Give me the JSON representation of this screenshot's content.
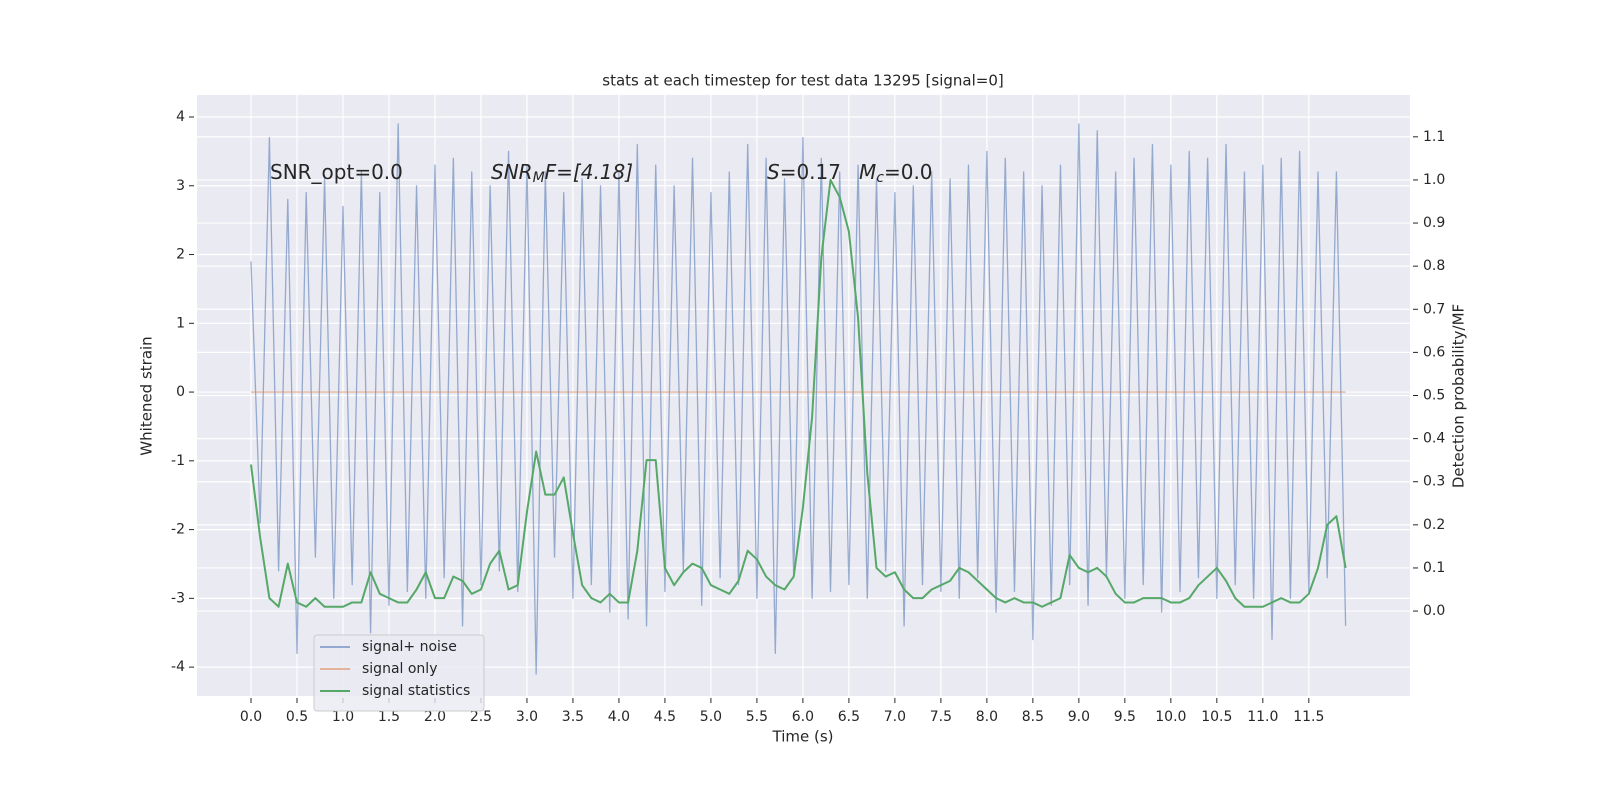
{
  "chart_data": {
    "type": "line",
    "title": "stats at each timestep for test data 13295 [signal=0]",
    "xlabel": "Time (s)",
    "ylabel": "Whitened strain",
    "y2label": "Detection probability/MF",
    "annotations": [
      [
        "SNR_opt=0.0"
      ],
      [
        "SNR",
        "M",
        "F=[4.18]"
      ],
      [
        "S",
        "=0.17"
      ],
      [
        "M",
        "c",
        "=0.0"
      ]
    ],
    "x": [
      0,
      0.1,
      0.2,
      0.3,
      0.4,
      0.5,
      0.6,
      0.7,
      0.8,
      0.9,
      1,
      1.1,
      1.2,
      1.3,
      1.4,
      1.5,
      1.6,
      1.7,
      1.8,
      1.9,
      2,
      2.1,
      2.2,
      2.3,
      2.4,
      2.5,
      2.6,
      2.7,
      2.8,
      2.9,
      3,
      3.1,
      3.2,
      3.3,
      3.4,
      3.5,
      3.6,
      3.7,
      3.8,
      3.9,
      4,
      4.1,
      4.2,
      4.3,
      4.4,
      4.5,
      4.6,
      4.7,
      4.8,
      4.9,
      5,
      5.1,
      5.2,
      5.3,
      5.4,
      5.5,
      5.6,
      5.7,
      5.8,
      5.9,
      6,
      6.1,
      6.2,
      6.3,
      6.4,
      6.5,
      6.6,
      6.7,
      6.8,
      6.9,
      7,
      7.1,
      7.2,
      7.3,
      7.4,
      7.5,
      7.6,
      7.7,
      7.8,
      7.9,
      8,
      8.1,
      8.2,
      8.3,
      8.4,
      8.5,
      8.6,
      8.7,
      8.8,
      8.9,
      9,
      9.1,
      9.2,
      9.3,
      9.4,
      9.5,
      9.6,
      9.7,
      9.8,
      9.9,
      10,
      10.1,
      10.2,
      10.3,
      10.4,
      10.5,
      10.6,
      10.7,
      10.8,
      10.9,
      11,
      11.1,
      11.2,
      11.3,
      11.4,
      11.5,
      11.6,
      11.7,
      11.8,
      11.9
    ],
    "series": [
      {
        "name": "signal+ noise",
        "color": "#4c72b0",
        "axis": "y",
        "values": [
          1.9,
          -1.9,
          3.7,
          -2.6,
          2.8,
          -3.8,
          2.9,
          -2.4,
          3.1,
          -3.0,
          2.7,
          -2.8,
          3.2,
          -3.5,
          2.9,
          -3.1,
          3.9,
          -2.9,
          3.0,
          -3.0,
          3.3,
          -2.7,
          3.4,
          -3.4,
          3.2,
          -2.8,
          3.0,
          -2.6,
          3.5,
          -2.9,
          3.3,
          -4.1,
          3.2,
          -2.4,
          2.9,
          -3.0,
          3.1,
          -2.8,
          3.0,
          -3.2,
          3.2,
          -3.3,
          3.6,
          -3.4,
          3.3,
          -2.9,
          3.0,
          -2.6,
          3.4,
          -3.1,
          2.9,
          -2.7,
          3.2,
          -2.8,
          3.6,
          -3.0,
          3.4,
          -3.8,
          3.1,
          -2.7,
          3.7,
          -3.0,
          3.4,
          -2.9,
          3.2,
          -2.8,
          3.3,
          -3.0,
          3.1,
          -2.6,
          2.9,
          -3.4,
          3.0,
          -2.8,
          3.2,
          -2.9,
          3.1,
          -3.0,
          3.3,
          -2.7,
          3.5,
          -3.2,
          3.4,
          -2.9,
          3.2,
          -3.6,
          3.0,
          -3.1,
          3.3,
          -2.8,
          3.9,
          -3.1,
          3.8,
          -2.7,
          3.2,
          -3.0,
          3.4,
          -2.8,
          3.6,
          -3.2,
          3.3,
          -2.9,
          3.5,
          -2.7,
          3.4,
          -3.0,
          3.6,
          -2.8,
          3.2,
          -3.0,
          3.3,
          -3.6,
          3.4,
          -3.0,
          3.5,
          -2.9,
          3.2,
          -2.7,
          3.2,
          -3.4
        ]
      },
      {
        "name": "signal only",
        "color": "#dd8452",
        "axis": "y",
        "values": [
          0,
          0,
          0,
          0,
          0,
          0,
          0,
          0,
          0,
          0,
          0,
          0,
          0,
          0,
          0,
          0,
          0,
          0,
          0,
          0,
          0,
          0,
          0,
          0,
          0,
          0,
          0,
          0,
          0,
          0,
          0,
          0,
          0,
          0,
          0,
          0,
          0,
          0,
          0,
          0,
          0,
          0,
          0,
          0,
          0,
          0,
          0,
          0,
          0,
          0,
          0,
          0,
          0,
          0,
          0,
          0,
          0,
          0,
          0,
          0,
          0,
          0,
          0,
          0,
          0,
          0,
          0,
          0,
          0,
          0,
          0,
          0,
          0,
          0,
          0,
          0,
          0,
          0,
          0,
          0,
          0,
          0,
          0,
          0,
          0,
          0,
          0,
          0,
          0,
          0,
          0,
          0,
          0,
          0,
          0,
          0,
          0,
          0,
          0,
          0,
          0,
          0,
          0,
          0,
          0,
          0,
          0,
          0,
          0,
          0,
          0,
          0,
          0,
          0,
          0,
          0,
          0,
          0,
          0,
          0
        ]
      },
      {
        "name": "signal statistics",
        "color": "#55a868",
        "axis": "y2",
        "values": [
          0.34,
          0.17,
          0.03,
          0.01,
          0.11,
          0.02,
          0.01,
          0.03,
          0.01,
          0.01,
          0.01,
          0.02,
          0.02,
          0.09,
          0.04,
          0.03,
          0.02,
          0.02,
          0.05,
          0.09,
          0.03,
          0.03,
          0.08,
          0.07,
          0.04,
          0.05,
          0.11,
          0.14,
          0.05,
          0.06,
          0.23,
          0.37,
          0.27,
          0.27,
          0.31,
          0.18,
          0.06,
          0.03,
          0.02,
          0.04,
          0.02,
          0.02,
          0.14,
          0.35,
          0.35,
          0.1,
          0.06,
          0.09,
          0.11,
          0.1,
          0.06,
          0.05,
          0.04,
          0.07,
          0.14,
          0.12,
          0.08,
          0.06,
          0.05,
          0.08,
          0.24,
          0.45,
          0.82,
          1.0,
          0.96,
          0.88,
          0.68,
          0.32,
          0.1,
          0.08,
          0.09,
          0.05,
          0.03,
          0.03,
          0.05,
          0.06,
          0.07,
          0.1,
          0.09,
          0.07,
          0.05,
          0.03,
          0.02,
          0.03,
          0.02,
          0.02,
          0.01,
          0.02,
          0.03,
          0.13,
          0.1,
          0.09,
          0.1,
          0.08,
          0.04,
          0.02,
          0.02,
          0.03,
          0.03,
          0.03,
          0.02,
          0.02,
          0.03,
          0.06,
          0.08,
          0.1,
          0.07,
          0.03,
          0.01,
          0.01,
          0.01,
          0.02,
          0.03,
          0.02,
          0.02,
          0.04,
          0.1,
          0.2,
          0.22,
          0.1
        ]
      }
    ],
    "xlim": [
      -0.587,
      12.6
    ],
    "xticks": [
      {
        "value": 0,
        "label": "0.0"
      },
      0.5,
      {
        "value": 1,
        "label": "1.0"
      },
      1.5,
      {
        "value": 2,
        "label": "2.0"
      },
      2.5,
      {
        "value": 3,
        "label": "3.0"
      },
      3.5,
      {
        "value": 4,
        "label": "4.0"
      },
      4.5,
      {
        "value": 5,
        "label": "5.0"
      },
      5.5,
      {
        "value": 6,
        "label": "6.0"
      },
      6.5,
      {
        "value": 7,
        "label": "7.0"
      },
      7.5,
      {
        "value": 8,
        "label": "8.0"
      },
      8.5,
      {
        "value": 9,
        "label": "9.0"
      },
      9.5,
      {
        "value": 10,
        "label": "10.0"
      },
      10.5,
      {
        "value": 11,
        "label": "11.0"
      },
      11.5
    ],
    "ylim": [
      -4.42,
      4.32
    ],
    "yticks": [
      -4,
      -3,
      -2,
      -1,
      0,
      1,
      2,
      3,
      4
    ],
    "y2lim": [
      -0.197,
      1.197
    ],
    "y2ticks": [
      {
        "value": 0,
        "label": "0.0"
      },
      0.1,
      0.2,
      0.3,
      0.4,
      0.5,
      0.6,
      0.7,
      0.8,
      0.9,
      {
        "value": 1,
        "label": "1.0"
      },
      1.1
    ],
    "grid": true,
    "legend": "lower left"
  }
}
